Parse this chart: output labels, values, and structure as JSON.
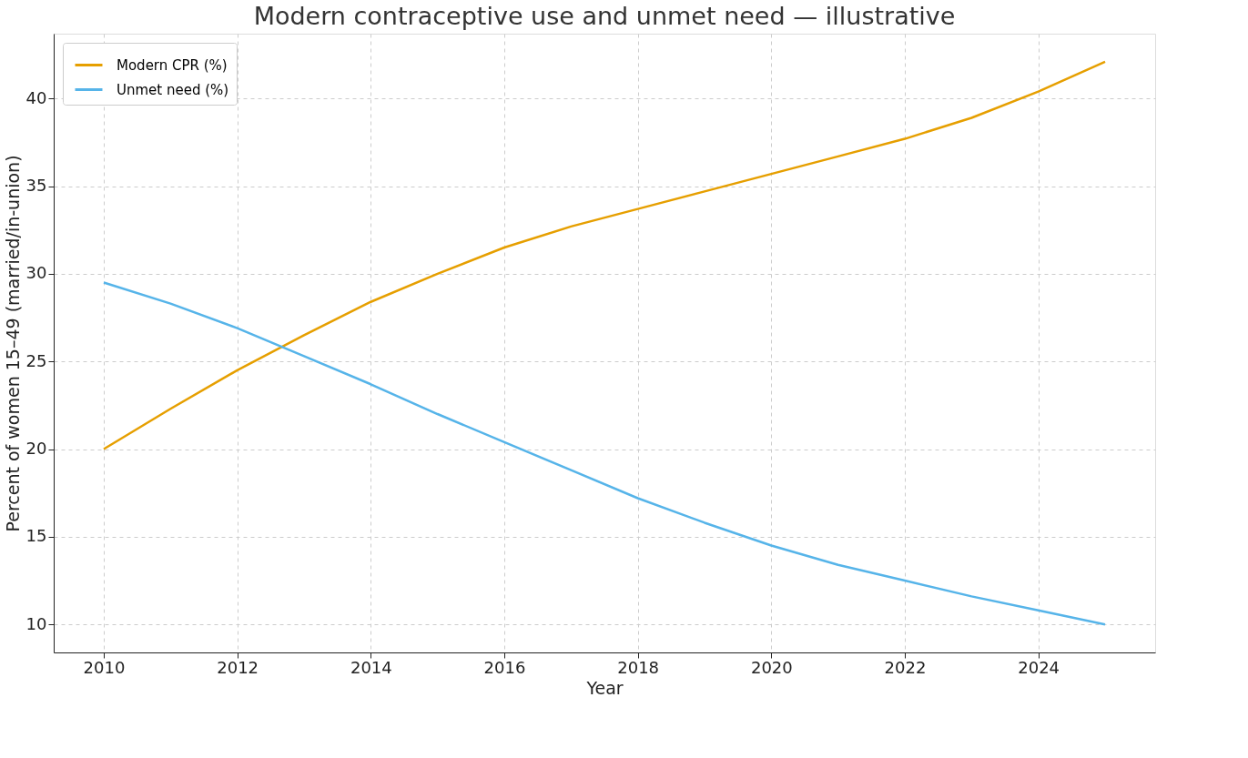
{
  "chart_data": {
    "type": "line",
    "title": "Modern contraceptive use and unmet need — illustrative",
    "xlabel": "Year",
    "ylabel": "Percent of women 15–49 (married/in-union)",
    "x": [
      2010,
      2011,
      2012,
      2013,
      2014,
      2015,
      2016,
      2017,
      2018,
      2019,
      2020,
      2021,
      2022,
      2023,
      2024,
      2025
    ],
    "series": [
      {
        "name": "Modern CPR (%)",
        "color": "#e69f00",
        "values": [
          20.0,
          22.3,
          24.5,
          26.5,
          28.4,
          30.0,
          31.5,
          32.7,
          33.7,
          34.7,
          35.7,
          36.7,
          37.7,
          38.9,
          40.4,
          42.1
        ]
      },
      {
        "name": "Unmet need (%)",
        "color": "#56b4e9",
        "values": [
          29.5,
          28.3,
          26.9,
          25.3,
          23.7,
          22.0,
          20.4,
          18.8,
          17.2,
          15.8,
          14.5,
          13.4,
          12.5,
          11.6,
          10.8,
          10.0
        ]
      }
    ],
    "xlim": [
      2009.25,
      2025.75
    ],
    "xticks": [
      2010,
      2012,
      2014,
      2016,
      2018,
      2020,
      2022,
      2024
    ],
    "ylim": [
      8.4,
      43.7
    ],
    "yticks": [
      10,
      15,
      20,
      25,
      30,
      35,
      40
    ],
    "grid": true,
    "legend": "top left",
    "marker": "none",
    "line_style": "solid"
  }
}
